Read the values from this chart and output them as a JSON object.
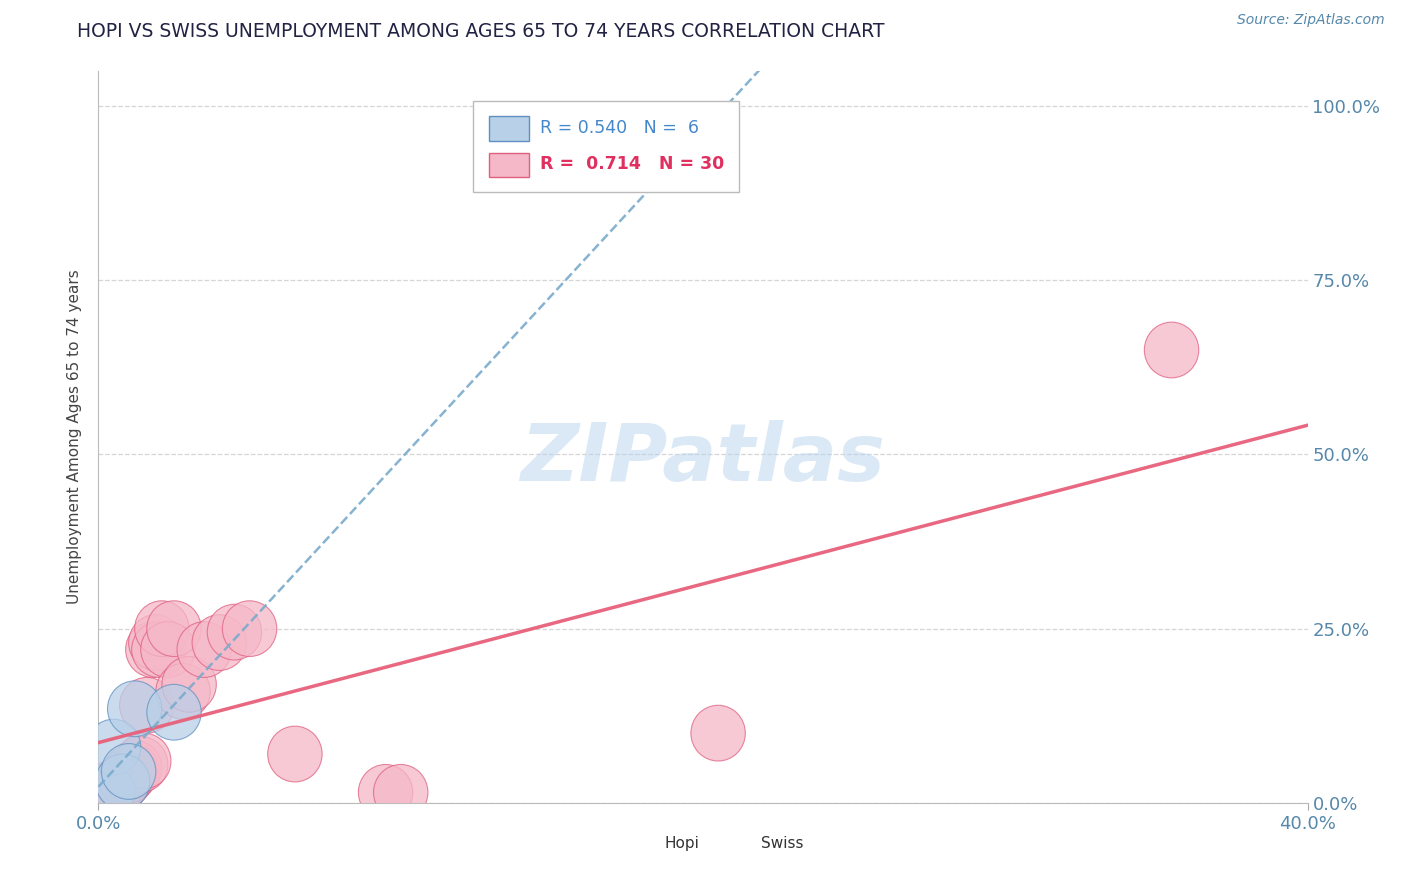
{
  "title": "HOPI VS SWISS UNEMPLOYMENT AMONG AGES 65 TO 74 YEARS CORRELATION CHART",
  "source": "Source: ZipAtlas.com",
  "ylabel": "Unemployment Among Ages 65 to 74 years",
  "xlim": [
    0.0,
    40.0
  ],
  "ylim": [
    0.0,
    105.0
  ],
  "x_tick_labels": [
    "0.0%",
    "40.0%"
  ],
  "x_ticks": [
    0.0,
    40.0
  ],
  "y_tick_labels_right": [
    "0.0%",
    "25.0%",
    "50.0%",
    "75.0%",
    "100.0%"
  ],
  "y_ticks_right": [
    0.0,
    25.0,
    50.0,
    75.0,
    100.0
  ],
  "hopi_R": 0.54,
  "hopi_N": 6,
  "swiss_R": 0.714,
  "swiss_N": 30,
  "hopi_fill_color": "#b8d0e8",
  "swiss_fill_color": "#f5b8c8",
  "hopi_edge_color": "#6090c0",
  "swiss_edge_color": "#e06080",
  "hopi_line_color": "#7aabcc",
  "swiss_line_color": "#e8607a",
  "hopi_scatter_x": [
    0.3,
    0.5,
    0.8,
    1.0,
    1.2,
    2.5
  ],
  "hopi_scatter_y": [
    1.5,
    8.0,
    3.0,
    4.5,
    13.5,
    13.0
  ],
  "swiss_scatter_x": [
    0.2,
    0.4,
    0.5,
    0.6,
    0.7,
    0.8,
    0.9,
    1.0,
    1.1,
    1.2,
    1.4,
    1.5,
    1.6,
    1.8,
    1.9,
    2.0,
    2.1,
    2.3,
    2.5,
    2.8,
    3.0,
    3.5,
    4.0,
    4.5,
    5.0,
    6.5,
    9.5,
    10.0,
    20.5,
    35.5
  ],
  "swiss_scatter_y": [
    1.5,
    2.0,
    1.5,
    2.0,
    2.5,
    3.0,
    3.5,
    4.0,
    4.5,
    5.0,
    5.5,
    6.0,
    14.0,
    22.0,
    23.0,
    22.0,
    25.0,
    22.0,
    25.0,
    16.0,
    17.0,
    22.0,
    23.0,
    24.5,
    25.0,
    7.0,
    1.5,
    1.5,
    10.0,
    65.0
  ],
  "swiss_line_params": [
    1.65,
    -0.5
  ],
  "hopi_line_params": [
    1.35,
    0.5
  ],
  "watermark": "ZIPatlas",
  "background_color": "#ffffff",
  "grid_color": "#cccccc",
  "title_color": "#222244",
  "axis_color": "#5588aa"
}
